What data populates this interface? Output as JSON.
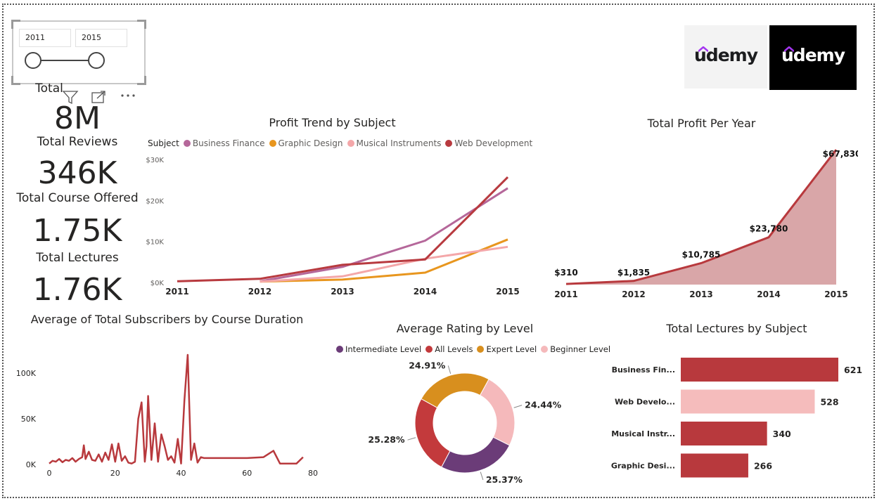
{
  "slicer": {
    "start_year": "2011",
    "end_year": "2015"
  },
  "kpis": {
    "partial_label": "Total",
    "reviews_value": "8M",
    "reviews_label": "Total Reviews",
    "courses_value": "346K",
    "courses_label": "Total Course Offered",
    "lectures_value": "1.75K",
    "lectures_label": "Total Lectures",
    "fourth_value": "1.76K"
  },
  "logos": {
    "left_text": "udemy",
    "right_text": "udemy"
  },
  "colors": {
    "business_finance": "#b5679a",
    "graphic_design": "#e8961e",
    "musical_instruments": "#f4a7a9",
    "web_development": "#b83a3f",
    "intermediate": "#6b3c78",
    "all_levels": "#c33a3c",
    "expert": "#d88f1e",
    "beginner": "#f5b9bb",
    "bar_red": "#b8393d",
    "bar_pink": "#f5bcbc"
  },
  "profit_trend": {
    "title": "Profit Trend by Subject",
    "legend_title": "Subject",
    "chart_data": {
      "type": "line",
      "x": [
        "2011",
        "2012",
        "2013",
        "2014",
        "2015"
      ],
      "y_ticks": [
        "$0K",
        "$10K",
        "$20K",
        "$30K"
      ],
      "ylim": [
        0,
        30000
      ],
      "series": [
        {
          "name": "Business Finance",
          "values": [
            null,
            300,
            3800,
            10200,
            23000
          ]
        },
        {
          "name": "Graphic Design",
          "values": [
            null,
            200,
            700,
            2400,
            10500
          ]
        },
        {
          "name": "Musical Instruments",
          "values": [
            null,
            200,
            1500,
            5800,
            8700
          ]
        },
        {
          "name": "Web Development",
          "values": [
            300,
            900,
            4300,
            5600,
            25700
          ]
        }
      ]
    }
  },
  "profit_year": {
    "title": "Total Profit Per Year",
    "chart_data": {
      "type": "area",
      "x": [
        "2011",
        "2012",
        "2013",
        "2014",
        "2015"
      ],
      "values": [
        310,
        1835,
        10785,
        23780,
        67830
      ],
      "labels": [
        "$310",
        "$1,835",
        "$10,785",
        "$23,780",
        "$67,830"
      ],
      "ylim": [
        0,
        70000
      ]
    }
  },
  "subscribers": {
    "title": "Average of Total Subscribers by Course Duration",
    "chart_data": {
      "type": "line",
      "x_ticks": [
        "0",
        "20",
        "40",
        "60",
        "80"
      ],
      "y_ticks": [
        "0K",
        "50K",
        "100K"
      ],
      "xlim": [
        0,
        80
      ],
      "ylim": [
        0,
        120000
      ],
      "x": [
        0,
        1,
        2,
        3,
        4,
        5,
        6,
        7,
        8,
        9,
        10,
        10.5,
        11,
        12,
        13,
        14,
        15,
        16,
        17,
        18,
        19,
        20,
        21,
        22,
        23,
        24,
        25,
        26,
        27,
        28,
        29,
        29.5,
        30,
        31,
        32,
        33,
        34,
        35,
        36,
        37,
        38,
        39,
        40,
        41,
        42,
        43,
        44,
        45,
        46,
        47,
        48,
        50,
        55,
        60,
        65,
        68,
        70,
        75,
        77
      ],
      "values": [
        1000,
        4000,
        3000,
        6000,
        2500,
        5000,
        4000,
        7000,
        3000,
        6000,
        8000,
        21000,
        6000,
        14000,
        5000,
        4000,
        11000,
        3000,
        13000,
        5000,
        22000,
        3000,
        23000,
        4000,
        9000,
        2000,
        1000,
        3000,
        50000,
        68000,
        3000,
        20000,
        75000,
        5000,
        45000,
        3000,
        33000,
        20000,
        5000,
        9000,
        2000,
        28000,
        1000,
        70000,
        120000,
        5000,
        23000,
        2000,
        8000,
        7000,
        7000,
        7000,
        7000,
        7000,
        8000,
        15000,
        1000,
        1000,
        8000
      ]
    }
  },
  "rating_level": {
    "title": "Average Rating by Level",
    "legend": [
      "Intermediate Level",
      "All Levels",
      "Expert Level",
      "Beginner Level"
    ],
    "chart_data": {
      "type": "pie",
      "labels": [
        "Beginner Level",
        "Intermediate Level",
        "All Levels",
        "Expert Level"
      ],
      "values": [
        24.44,
        25.37,
        25.28,
        24.91
      ],
      "value_labels": [
        "24.44%",
        "25.37%",
        "25.28%",
        "24.91%"
      ]
    }
  },
  "lectures_subject": {
    "title": "Total Lectures by Subject",
    "chart_data": {
      "type": "bar",
      "categories": [
        "Business Fin...",
        "Web Develo...",
        "Musical Instr...",
        "Graphic Desi..."
      ],
      "values": [
        621,
        528,
        340,
        266
      ],
      "value_labels": [
        "621",
        "528",
        "340",
        "266"
      ]
    }
  }
}
